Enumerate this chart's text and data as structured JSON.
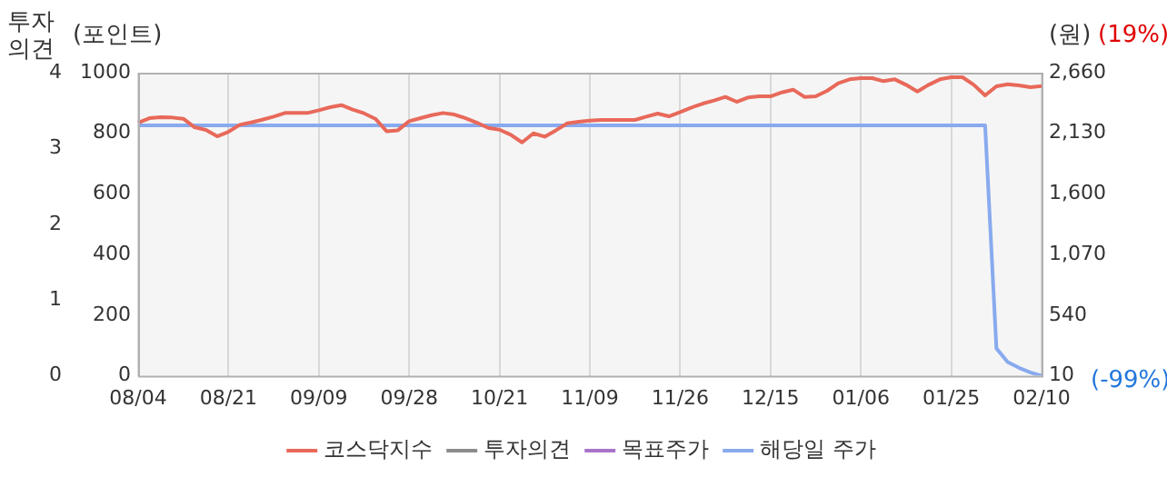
{
  "chart_data": {
    "type": "line",
    "categories": [
      "08/04",
      null,
      null,
      null,
      null,
      null,
      null,
      null,
      "08/21",
      null,
      null,
      null,
      null,
      null,
      null,
      null,
      "09/09",
      null,
      null,
      null,
      null,
      null,
      null,
      null,
      "09/28",
      null,
      null,
      null,
      null,
      null,
      null,
      null,
      "10/21",
      null,
      null,
      null,
      null,
      null,
      null,
      null,
      "11/09",
      null,
      null,
      null,
      null,
      null,
      null,
      null,
      "11/26",
      null,
      null,
      null,
      null,
      null,
      null,
      null,
      "12/15",
      null,
      null,
      null,
      null,
      null,
      null,
      null,
      "01/06",
      null,
      null,
      null,
      null,
      null,
      null,
      null,
      "01/25",
      null,
      null,
      null,
      null,
      null,
      null,
      null,
      "02/10"
    ],
    "series": [
      {
        "name": "코스닥지수",
        "color": "#e8695a",
        "values": [
          835,
          850,
          853,
          852,
          848,
          820,
          811,
          790,
          805,
          828,
          836,
          845,
          855,
          867,
          867,
          867,
          876,
          886,
          893,
          878,
          866,
          848,
          807,
          810,
          840,
          850,
          860,
          867,
          862,
          850,
          835,
          818,
          812,
          795,
          770,
          800,
          789,
          810,
          833,
          838,
          842,
          844,
          844,
          844,
          844,
          855,
          865,
          856,
          870,
          885,
          898,
          908,
          920,
          904,
          918,
          922,
          922,
          935,
          944,
          920,
          922,
          940,
          965,
          978,
          982,
          982,
          972,
          978,
          960,
          938,
          960,
          978,
          985,
          985,
          960,
          925,
          955,
          962,
          958,
          952,
          956
        ]
      },
      {
        "name": "투자의견",
        "color": "#8c8c8c",
        "axis": "y3",
        "values": [
          null,
          null,
          null,
          null,
          null,
          null,
          null,
          null,
          null,
          null,
          null,
          null,
          null,
          null,
          null,
          null,
          null,
          null,
          null,
          null,
          null,
          null,
          null,
          null,
          null,
          null,
          null,
          null,
          null,
          null,
          null,
          null,
          null,
          null,
          null,
          null,
          null,
          null,
          null,
          null,
          null,
          null,
          null,
          null,
          null,
          null,
          null,
          null,
          null,
          null,
          null,
          null,
          null,
          null,
          null,
          null,
          null,
          null,
          null,
          null,
          null,
          null,
          null,
          null,
          null,
          null,
          null,
          null,
          null,
          null,
          null,
          null,
          null,
          null,
          null,
          null,
          null,
          null,
          null,
          null,
          null
        ]
      },
      {
        "name": "목표주가",
        "color": "#a874c8",
        "axis": "y2",
        "values": [
          null,
          null,
          null,
          null,
          null,
          null,
          null,
          null,
          null,
          null,
          null,
          null,
          null,
          null,
          null,
          null,
          null,
          null,
          null,
          null,
          null,
          null,
          null,
          null,
          null,
          null,
          null,
          null,
          null,
          null,
          null,
          null,
          null,
          null,
          null,
          null,
          null,
          null,
          null,
          null,
          null,
          null,
          null,
          null,
          null,
          null,
          null,
          null,
          null,
          null,
          null,
          null,
          null,
          null,
          null,
          null,
          null,
          null,
          null,
          null,
          null,
          null,
          null,
          null,
          null,
          null,
          null,
          null,
          null,
          null,
          null,
          null,
          null,
          null,
          null,
          null,
          null,
          null,
          null,
          null,
          null
        ]
      },
      {
        "name": "해당일 주가",
        "color": "#88aaee",
        "axis": "y2",
        "values": [
          2200,
          2200,
          2200,
          2200,
          2200,
          2200,
          2200,
          2200,
          2200,
          2200,
          2200,
          2200,
          2200,
          2200,
          2200,
          2200,
          2200,
          2200,
          2200,
          2200,
          2200,
          2200,
          2200,
          2200,
          2200,
          2200,
          2200,
          2200,
          2200,
          2200,
          2200,
          2200,
          2200,
          2200,
          2200,
          2200,
          2200,
          2200,
          2200,
          2200,
          2200,
          2200,
          2200,
          2200,
          2200,
          2200,
          2200,
          2200,
          2200,
          2200,
          2200,
          2200,
          2200,
          2200,
          2200,
          2200,
          2200,
          2200,
          2200,
          2200,
          2200,
          2200,
          2200,
          2200,
          2200,
          2200,
          2200,
          2200,
          2200,
          2200,
          2200,
          2200,
          2200,
          2200,
          2200,
          2200,
          250,
          130,
          80,
          40,
          10
        ]
      }
    ],
    "ylabel": "(포인트)",
    "y2label": "(원)",
    "y3label": "투자의견",
    "ylim": [
      0,
      1000
    ],
    "yticks": [
      0,
      200,
      400,
      600,
      800,
      1000
    ],
    "y2lim": [
      10,
      2660
    ],
    "y2ticks": [
      10,
      540,
      {
        "value": 1070,
        "label": "1,070"
      },
      {
        "value": 1600,
        "label": "1,600"
      },
      {
        "value": 2130,
        "label": "2,130"
      },
      {
        "value": 2660,
        "label": "2,660"
      }
    ],
    "y3lim": [
      0,
      4
    ],
    "y3ticks": [
      0,
      1,
      2,
      3,
      4
    ],
    "annotations": [
      "(19%)",
      "(-99%)"
    ],
    "grid": "x",
    "legend": "bottom",
    "marker": "none",
    "line_style": "solid"
  }
}
